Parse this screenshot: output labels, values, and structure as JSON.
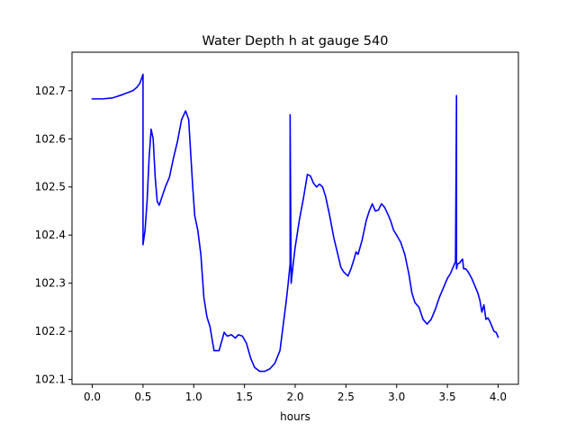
{
  "chart_data": {
    "type": "line",
    "title": "Water Depth h at gauge 540",
    "xlabel": "hours",
    "ylabel": "",
    "xlim": [
      -0.2,
      4.2
    ],
    "ylim": [
      102.09,
      102.78
    ],
    "xticks": [
      0.0,
      0.5,
      1.0,
      1.5,
      2.0,
      2.5,
      3.0,
      3.5,
      4.0
    ],
    "xtick_labels": [
      "0.0",
      "0.5",
      "1.0",
      "1.5",
      "2.0",
      "2.5",
      "3.0",
      "3.5",
      "4.0"
    ],
    "yticks": [
      102.1,
      102.2,
      102.3,
      102.4,
      102.5,
      102.6,
      102.7
    ],
    "ytick_labels": [
      "102.1",
      "102.2",
      "102.3",
      "102.4",
      "102.5",
      "102.6",
      "102.7"
    ],
    "grid": false,
    "legend": "none",
    "series": [
      {
        "color": "#0000ff",
        "x": [
          0.0,
          0.1,
          0.2,
          0.3,
          0.35,
          0.4,
          0.44,
          0.47,
          0.5,
          0.5,
          0.52,
          0.54,
          0.56,
          0.58,
          0.6,
          0.62,
          0.64,
          0.66,
          0.68,
          0.72,
          0.76,
          0.8,
          0.84,
          0.88,
          0.92,
          0.95,
          0.97,
          0.99,
          1.01,
          1.04,
          1.07,
          1.1,
          1.13,
          1.16,
          1.2,
          1.25,
          1.3,
          1.33,
          1.37,
          1.41,
          1.44,
          1.48,
          1.52,
          1.56,
          1.6,
          1.65,
          1.7,
          1.75,
          1.8,
          1.85,
          1.88,
          1.91,
          1.93,
          1.95,
          1.95,
          1.96,
          1.98,
          2.0,
          2.04,
          2.08,
          2.12,
          2.15,
          2.18,
          2.21,
          2.24,
          2.27,
          2.3,
          2.34,
          2.38,
          2.42,
          2.45,
          2.48,
          2.52,
          2.55,
          2.58,
          2.6,
          2.62,
          2.64,
          2.66,
          2.68,
          2.7,
          2.73,
          2.76,
          2.79,
          2.82,
          2.85,
          2.88,
          2.91,
          2.94,
          2.97,
          3.0,
          3.04,
          3.08,
          3.12,
          3.15,
          3.18,
          3.22,
          3.26,
          3.3,
          3.34,
          3.38,
          3.42,
          3.46,
          3.5,
          3.53,
          3.56,
          3.58,
          3.59,
          3.59,
          3.6,
          3.62,
          3.64,
          3.65,
          3.66,
          3.68,
          3.7,
          3.72,
          3.74,
          3.76,
          3.78,
          3.8,
          3.82,
          3.84,
          3.86,
          3.88,
          3.9,
          3.92,
          3.94,
          3.96,
          3.98,
          4.0
        ],
        "y": [
          102.683,
          102.683,
          102.685,
          102.692,
          102.696,
          102.7,
          102.707,
          102.716,
          102.734,
          102.38,
          102.41,
          102.47,
          102.56,
          102.62,
          102.6,
          102.52,
          102.47,
          102.462,
          102.475,
          102.5,
          102.52,
          102.56,
          102.595,
          102.64,
          102.658,
          102.64,
          102.57,
          102.5,
          102.44,
          102.41,
          102.36,
          102.27,
          102.23,
          102.21,
          102.16,
          102.16,
          102.198,
          102.19,
          102.193,
          102.186,
          102.193,
          102.19,
          102.175,
          102.145,
          102.125,
          102.117,
          102.117,
          102.122,
          102.134,
          102.16,
          102.21,
          102.26,
          102.298,
          102.34,
          102.65,
          102.3,
          102.34,
          102.375,
          102.43,
          102.475,
          102.526,
          102.523,
          102.508,
          102.5,
          102.506,
          102.5,
          102.48,
          102.44,
          102.395,
          102.36,
          102.333,
          102.323,
          102.315,
          102.33,
          102.35,
          102.365,
          102.36,
          102.375,
          102.39,
          102.41,
          102.43,
          102.45,
          102.465,
          102.45,
          102.452,
          102.465,
          102.458,
          102.445,
          102.43,
          102.41,
          102.4,
          102.385,
          102.36,
          102.32,
          102.28,
          102.26,
          102.25,
          102.225,
          102.215,
          102.225,
          102.245,
          102.27,
          102.29,
          102.31,
          102.32,
          102.335,
          102.345,
          102.69,
          102.33,
          102.34,
          102.342,
          102.348,
          102.35,
          102.33,
          102.33,
          102.325,
          102.318,
          102.31,
          102.3,
          102.29,
          102.28,
          102.265,
          102.24,
          102.255,
          102.225,
          102.228,
          102.22,
          102.21,
          102.2,
          102.198,
          102.188
        ]
      }
    ]
  }
}
